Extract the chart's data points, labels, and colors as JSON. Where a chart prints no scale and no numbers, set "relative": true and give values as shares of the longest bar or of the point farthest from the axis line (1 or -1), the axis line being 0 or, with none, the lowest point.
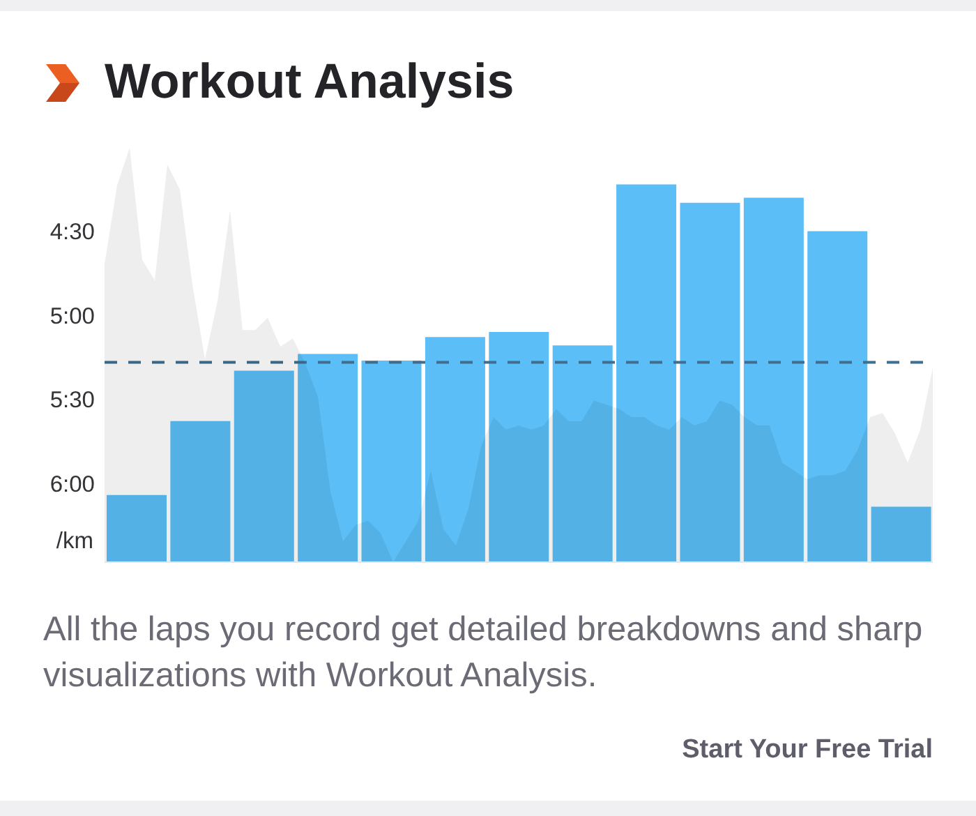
{
  "chart_data": [
    {
      "type": "bar",
      "title": "Workout Analysis",
      "ylabel": "/km",
      "categories": [
        null,
        null,
        null,
        null,
        null,
        null,
        null,
        null,
        null,
        null,
        null,
        null,
        null
      ],
      "base": [
        6.47,
        6.47,
        6.47,
        6.47,
        6.47,
        6.47,
        6.47,
        6.47,
        6.47,
        6.47,
        6.47,
        6.47,
        6.47
      ],
      "values": [
        -0.4,
        -0.84,
        -1.14,
        -1.24,
        -1.2,
        -1.34,
        -1.37,
        -1.29,
        -2.25,
        -2.14,
        -2.17,
        -1.97,
        -0.33
      ],
      "color": "#5bbef7",
      "ylim": [
        6.47,
        4.22
      ],
      "yticks": [
        {
          "value": 4.5,
          "label": "4:30"
        },
        {
          "value": 5,
          "label": "5:00"
        },
        {
          "value": 5.5,
          "label": "5:30"
        },
        {
          "value": 6,
          "label": "6:00"
        }
      ],
      "ref_lines": [
        {
          "axis": "y",
          "value": 5.28,
          "color": "#3f6e90",
          "line_style": "dashed"
        }
      ],
      "annotations": [
        "All the laps you record get detailed breakdowns and sharp visualizations with Workout Analysis.",
        "Start Your Free Trial"
      ]
    },
    {
      "type": "area",
      "relative": true,
      "categories": [
        null,
        null,
        null,
        null,
        null,
        null,
        null,
        null,
        null,
        null,
        null,
        null,
        null,
        null,
        null,
        null,
        null,
        null,
        null,
        null,
        null,
        null,
        null,
        null,
        null,
        null,
        null,
        null,
        null,
        null,
        null,
        null,
        null,
        null,
        null,
        null,
        null,
        null,
        null,
        null,
        null,
        null,
        null,
        null,
        null,
        null,
        null,
        null,
        null,
        null,
        null,
        null,
        null,
        null,
        null,
        null,
        null,
        null,
        null,
        null,
        null,
        null,
        null,
        null,
        null,
        null,
        null
      ],
      "values": [
        0.72,
        0.91,
        1.0,
        0.73,
        0.68,
        0.96,
        0.9,
        0.67,
        0.49,
        0.63,
        0.85,
        0.56,
        0.56,
        0.59,
        0.52,
        0.54,
        0.48,
        0.4,
        0.17,
        0.05,
        0.09,
        0.1,
        0.07,
        0.0,
        0.05,
        0.1,
        0.22,
        0.08,
        0.04,
        0.13,
        0.28,
        0.35,
        0.32,
        0.33,
        0.32,
        0.33,
        0.37,
        0.34,
        0.34,
        0.39,
        0.38,
        0.37,
        0.35,
        0.35,
        0.33,
        0.32,
        0.35,
        0.33,
        0.34,
        0.39,
        0.38,
        0.35,
        0.33,
        0.33,
        0.24,
        0.22,
        0.2,
        0.21,
        0.21,
        0.22,
        0.27,
        0.35,
        0.36,
        0.31,
        0.24,
        0.32,
        0.47
      ],
      "color": "#eeeeee"
    }
  ]
}
